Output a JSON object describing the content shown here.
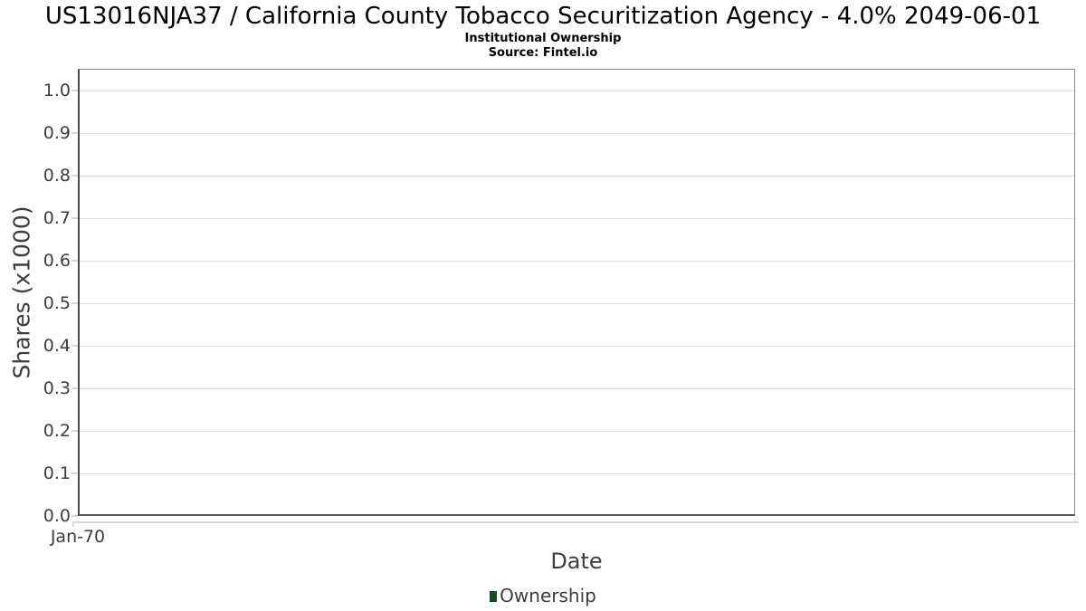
{
  "header": {
    "title": "US13016NJA37 / California County Tobacco Securitization Agency - 4.0% 2049-06-01",
    "subtitle": "Institutional Ownership",
    "source": "Source: Fintel.io"
  },
  "chart_data": {
    "type": "line",
    "title": "US13016NJA37 / California County Tobacco Securitization Agency - 4.0% 2049-06-01",
    "subtitle": "Institutional Ownership",
    "source": "Source: Fintel.io",
    "xlabel": "Date",
    "ylabel": "Shares (x1000)",
    "x_ticks": [
      "Jan-70"
    ],
    "y_ticks": [
      "0.0",
      "0.1",
      "0.2",
      "0.3",
      "0.4",
      "0.5",
      "0.6",
      "0.7",
      "0.8",
      "0.9",
      "1.0"
    ],
    "ylim": [
      0.0,
      1.05
    ],
    "grid": true,
    "legend_position": "bottom",
    "series": [
      {
        "name": "Ownership",
        "x": [],
        "values": []
      }
    ]
  },
  "legend": {
    "items": [
      {
        "label": "Ownership",
        "marker_color": "#1a4a24"
      }
    ]
  },
  "colors": {
    "background": "#ffffff",
    "title_text": "#000000",
    "axis_text": "#3d3d3d",
    "gridline": "#dcdcdc",
    "plot_border": "#878787",
    "axis_line": "#4a4a4a",
    "tick": "#d8d8d8",
    "series_ownership": "#1a4a24"
  }
}
